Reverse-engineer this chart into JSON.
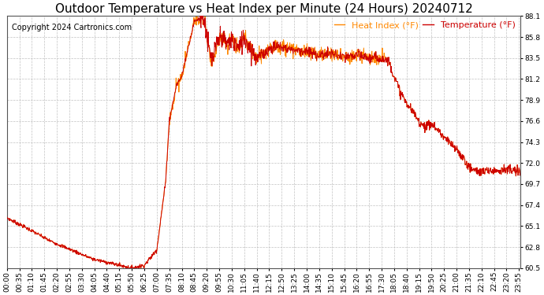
{
  "title": "Outdoor Temperature vs Heat Index per Minute (24 Hours) 20240712",
  "copyright": "Copyright 2024 Cartronics.com",
  "legend_heat": "Heat Index (°F)",
  "legend_temp": "Temperature (°F)",
  "temp_color": "#cc0000",
  "heat_color": "#ff8800",
  "bg_color": "#ffffff",
  "plot_bg_color": "#ffffff",
  "grid_color": "#bbbbbb",
  "ylim_min": 60.5,
  "ylim_max": 88.1,
  "yticks": [
    60.5,
    62.8,
    65.1,
    67.4,
    69.7,
    72.0,
    74.3,
    76.6,
    78.9,
    81.2,
    83.5,
    85.8,
    88.1
  ],
  "title_fontsize": 11,
  "copyright_fontsize": 7,
  "legend_fontsize": 8,
  "axis_fontsize": 6.5
}
